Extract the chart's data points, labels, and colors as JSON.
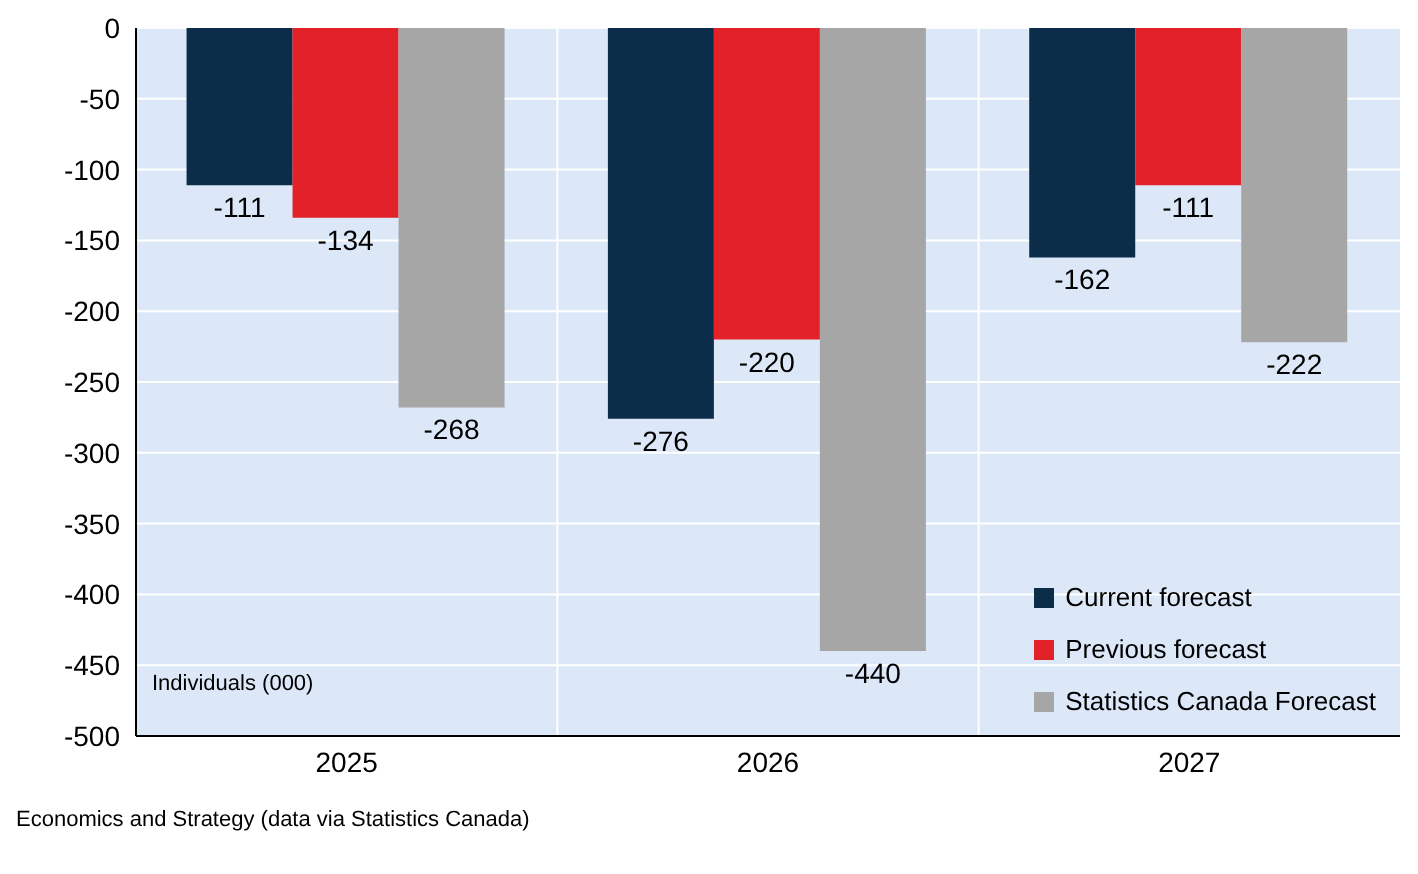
{
  "chart_data": {
    "type": "bar",
    "categories": [
      "2025",
      "2026",
      "2027"
    ],
    "series": [
      {
        "name": "Current forecast",
        "color": "#0b2d4a",
        "values": [
          -111,
          -276,
          -162
        ]
      },
      {
        "name": "Previous forecast",
        "color": "#e32128",
        "values": [
          -134,
          -220,
          -111
        ]
      },
      {
        "name": "Statistics Canada Forecast",
        "color": "#a6a6a6",
        "values": [
          -268,
          -440,
          -222
        ]
      }
    ],
    "ylim": [
      -500,
      0
    ],
    "yticks": [
      -500,
      -450,
      -400,
      -350,
      -300,
      -250,
      -200,
      -150,
      -100,
      -50,
      0
    ],
    "grid": true,
    "legend": "bottom right",
    "data_labels": true,
    "annotations": [
      "Individuals (000)",
      "Economics and Strategy (data via Statistics Canada)"
    ]
  }
}
